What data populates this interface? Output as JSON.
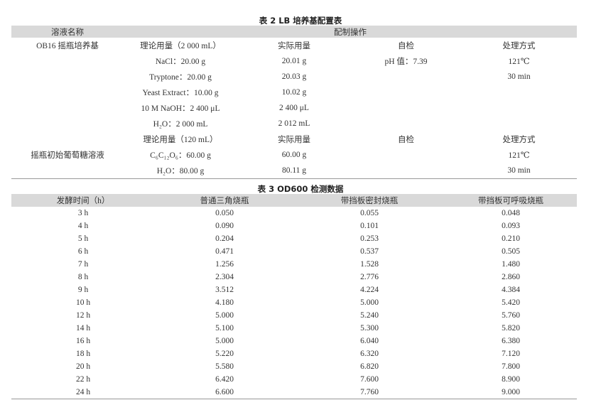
{
  "table2": {
    "title": "表 2  LB 培养基配置表",
    "headers": [
      "溶液名称",
      "配制操作"
    ],
    "groups": [
      {
        "name": "OB16 摇瓶培养基",
        "rows": [
          [
            "理论用量（2 000 mL）",
            "实际用量",
            "自检",
            "处理方式"
          ],
          [
            "NaCl：20.00 g",
            "20.01 g",
            "pH 值：7.39",
            "121℃"
          ],
          [
            "Tryptone：20.00 g",
            "20.03 g",
            "",
            "30 min"
          ],
          [
            "Yeast Extract：10.00 g",
            "10.02 g",
            "",
            ""
          ],
          [
            "10 M NaOH：2 400 μL",
            "2 400 μL",
            "",
            ""
          ],
          [
            "H₂O：2 000 mL",
            "2 012 mL",
            "",
            ""
          ]
        ]
      },
      {
        "name": "摇瓶初始葡萄糖溶液",
        "rows": [
          [
            "理论用量（120 mL）",
            "实际用量",
            "自检",
            "处理方式"
          ],
          [
            "C₆C₁₂O₆：60.00 g",
            "60.00 g",
            "",
            "121℃"
          ],
          [
            "H₂O：80.00 g",
            "80.11 g",
            "",
            "30 min"
          ]
        ]
      }
    ]
  },
  "table3": {
    "title": "表 3   OD600 检测数据",
    "headers": [
      "发酵时间（h）",
      "普通三角烧瓶",
      "带挡板密封烧瓶",
      "带挡板可呼吸烧瓶"
    ],
    "rows": [
      [
        "3 h",
        "0.050",
        "0.055",
        "0.048"
      ],
      [
        "4 h",
        "0.090",
        "0.101",
        "0.093"
      ],
      [
        "5 h",
        "0.204",
        "0.253",
        "0.210"
      ],
      [
        "6 h",
        "0.471",
        "0.537",
        "0.505"
      ],
      [
        "7 h",
        "1.256",
        "1.528",
        "1.480"
      ],
      [
        "8 h",
        "2.304",
        "2.776",
        "2.860"
      ],
      [
        "9 h",
        "3.512",
        "4.224",
        "4.384"
      ],
      [
        "10 h",
        "4.180",
        "5.000",
        "5.420"
      ],
      [
        "12 h",
        "5.000",
        "5.240",
        "5.760"
      ],
      [
        "14 h",
        "5.100",
        "5.300",
        "5.820"
      ],
      [
        "16 h",
        "5.000",
        "6.040",
        "6.380"
      ],
      [
        "18 h",
        "5.220",
        "6.320",
        "7.120"
      ],
      [
        "20 h",
        "5.580",
        "6.820",
        "7.800"
      ],
      [
        "22 h",
        "6.420",
        "7.600",
        "8.900"
      ],
      [
        "24 h",
        "6.600",
        "7.760",
        "9.000"
      ]
    ]
  }
}
